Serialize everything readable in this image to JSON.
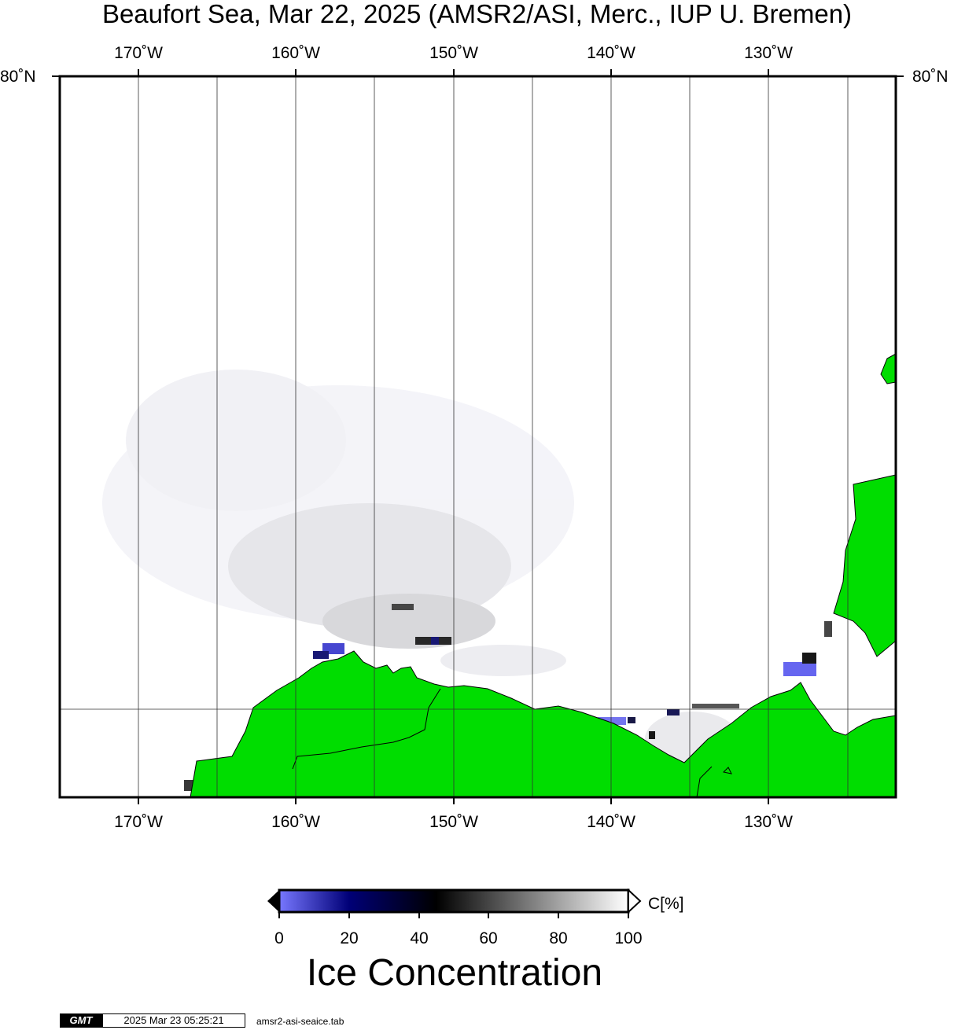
{
  "title": "Beaufort Sea, Mar 22, 2025 (AMSR2/ASI, Merc., IUP U. Bremen)",
  "map": {
    "lon_range": [
      -175,
      -122
    ],
    "lat_top": 80,
    "lat_top_label": "80˚N",
    "lon_ticks": [
      {
        "lon": -170,
        "label": "170˚W"
      },
      {
        "lon": -160,
        "label": "160˚W"
      },
      {
        "lon": -150,
        "label": "150˚W"
      },
      {
        "lon": -140,
        "label": "140˚W"
      },
      {
        "lon": -130,
        "label": "130˚W"
      }
    ],
    "colors": {
      "land": "#00dd00",
      "ocean": "#ffffff",
      "grid": "#333333",
      "frame": "#000000"
    }
  },
  "colorbar": {
    "min": 0,
    "max": 100,
    "ticks": [
      "0",
      "20",
      "40",
      "60",
      "80",
      "100"
    ],
    "unit": "C[%]",
    "title": "Ice Concentration",
    "gradient_stops": [
      {
        "value": 0,
        "color": "#7777ff"
      },
      {
        "value": 20,
        "color": "#000077"
      },
      {
        "value": 45,
        "color": "#000000"
      },
      {
        "value": 100,
        "color": "#ffffff"
      }
    ]
  },
  "footer": {
    "logo": "GMT",
    "timestamp": "2025 Mar 23 05:25:21",
    "source_file": "amsr2-asi-seaice.tab"
  }
}
